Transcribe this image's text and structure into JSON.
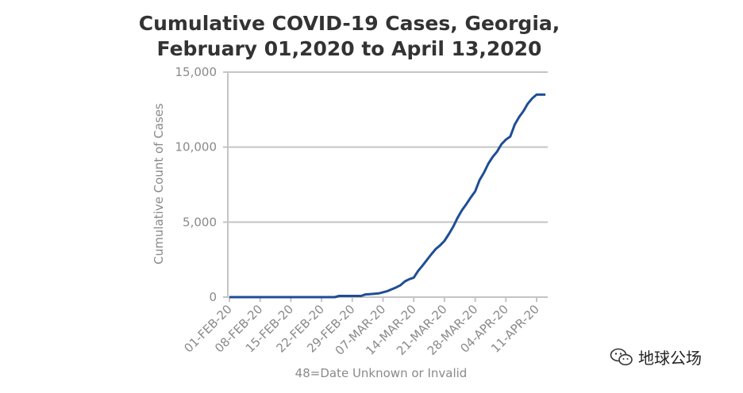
{
  "chart_data": {
    "type": "line",
    "title": "Cumulative COVID-19 Cases, Georgia,",
    "subtitle": "February 01,2020  to  April 13,2020",
    "xlabel": "48=Date Unknown or Invalid",
    "ylabel": "Cumulative Count of Cases",
    "ylim": [
      0,
      15000
    ],
    "yticks": [
      0,
      5000,
      10000,
      15000
    ],
    "ytick_labels": [
      "0",
      "5,000",
      "10,000",
      "15,000"
    ],
    "xticks": [
      "01-FEB-20",
      "08-FEB-20",
      "15-FEB-20",
      "22-FEB-20",
      "29-FEB-20",
      "07-MAR-20",
      "14-MAR-20",
      "21-MAR-20",
      "28-MAR-20",
      "04-APR-20",
      "11-APR-20"
    ],
    "grid": true,
    "series_color": "#1f4e96",
    "series": [
      {
        "x": [
          "01-FEB-20",
          "25-FEB-20",
          "26-FEB-20",
          "02-MAR-20",
          "03-MAR-20",
          "04-MAR-20",
          "06-MAR-20",
          "08-MAR-20",
          "10-MAR-20",
          "11-MAR-20",
          "12-MAR-20",
          "13-MAR-20",
          "14-MAR-20",
          "15-MAR-20",
          "16-MAR-20",
          "18-MAR-20",
          "19-MAR-20",
          "20-MAR-20",
          "21-MAR-20",
          "22-MAR-20",
          "23-MAR-20",
          "24-MAR-20",
          "25-MAR-20",
          "26-MAR-20",
          "27-MAR-20",
          "28-MAR-20",
          "29-MAR-20",
          "30-MAR-20",
          "31-MAR-20",
          "01-APR-20",
          "02-APR-20",
          "03-APR-20",
          "04-APR-20",
          "05-APR-20",
          "06-APR-20",
          "07-APR-20",
          "08-APR-20",
          "09-APR-20",
          "10-APR-20",
          "11-APR-20",
          "12-APR-20",
          "13-APR-20"
        ],
        "values": [
          0,
          0,
          80,
          80,
          180,
          200,
          250,
          400,
          650,
          800,
          1050,
          1200,
          1300,
          1750,
          2100,
          2850,
          3200,
          3450,
          3750,
          4200,
          4700,
          5300,
          5800,
          6200,
          6650,
          7050,
          7800,
          8300,
          8900,
          9350,
          9700,
          10200,
          10500,
          10700,
          11500,
          12000,
          12400,
          12900,
          13250,
          13500,
          13500,
          13500
        ]
      }
    ]
  },
  "watermark": {
    "text": "地球公场",
    "icon": "wechat-icon"
  }
}
